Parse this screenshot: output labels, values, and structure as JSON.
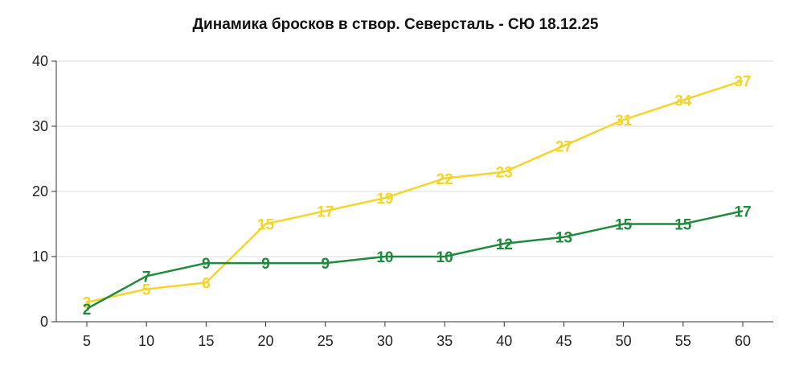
{
  "chart_data": {
    "type": "line",
    "title": "Динамика бросков в створ. Северсталь - СЮ 18.12.25",
    "xlabel": "",
    "ylabel": "",
    "x": [
      5,
      10,
      15,
      20,
      25,
      30,
      35,
      40,
      45,
      50,
      55,
      60
    ],
    "xticks": [
      "5",
      "10",
      "15",
      "20",
      "25",
      "30",
      "35",
      "40",
      "45",
      "50",
      "55",
      "60"
    ],
    "ylim": [
      0,
      40
    ],
    "yticks": [
      "0",
      "10",
      "20",
      "30",
      "40"
    ],
    "grid": true,
    "legend": "none",
    "series": [
      {
        "color": "#f5d52a",
        "values": [
          3,
          5,
          6,
          15,
          17,
          19,
          22,
          23,
          27,
          31,
          34,
          37
        ]
      },
      {
        "color": "#1f8a3c",
        "values": [
          2,
          7,
          9,
          9,
          9,
          10,
          10,
          12,
          13,
          15,
          15,
          17
        ]
      }
    ]
  }
}
